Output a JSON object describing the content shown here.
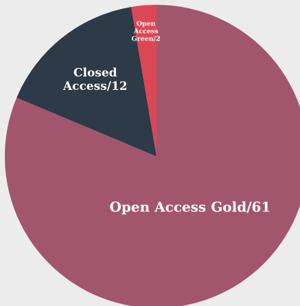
{
  "chart_data": {
    "type": "pie",
    "slices": [
      {
        "label": "Open Access Gold/61",
        "value": 61,
        "color": "#a2566e"
      },
      {
        "label": "Closed Access/12",
        "value": 12,
        "color": "#2d3a47"
      },
      {
        "label": "Open Access Green/2",
        "value": 2,
        "color": "#dc4755"
      }
    ],
    "start": "top",
    "direction": "clockwise",
    "labels_inside": true
  }
}
